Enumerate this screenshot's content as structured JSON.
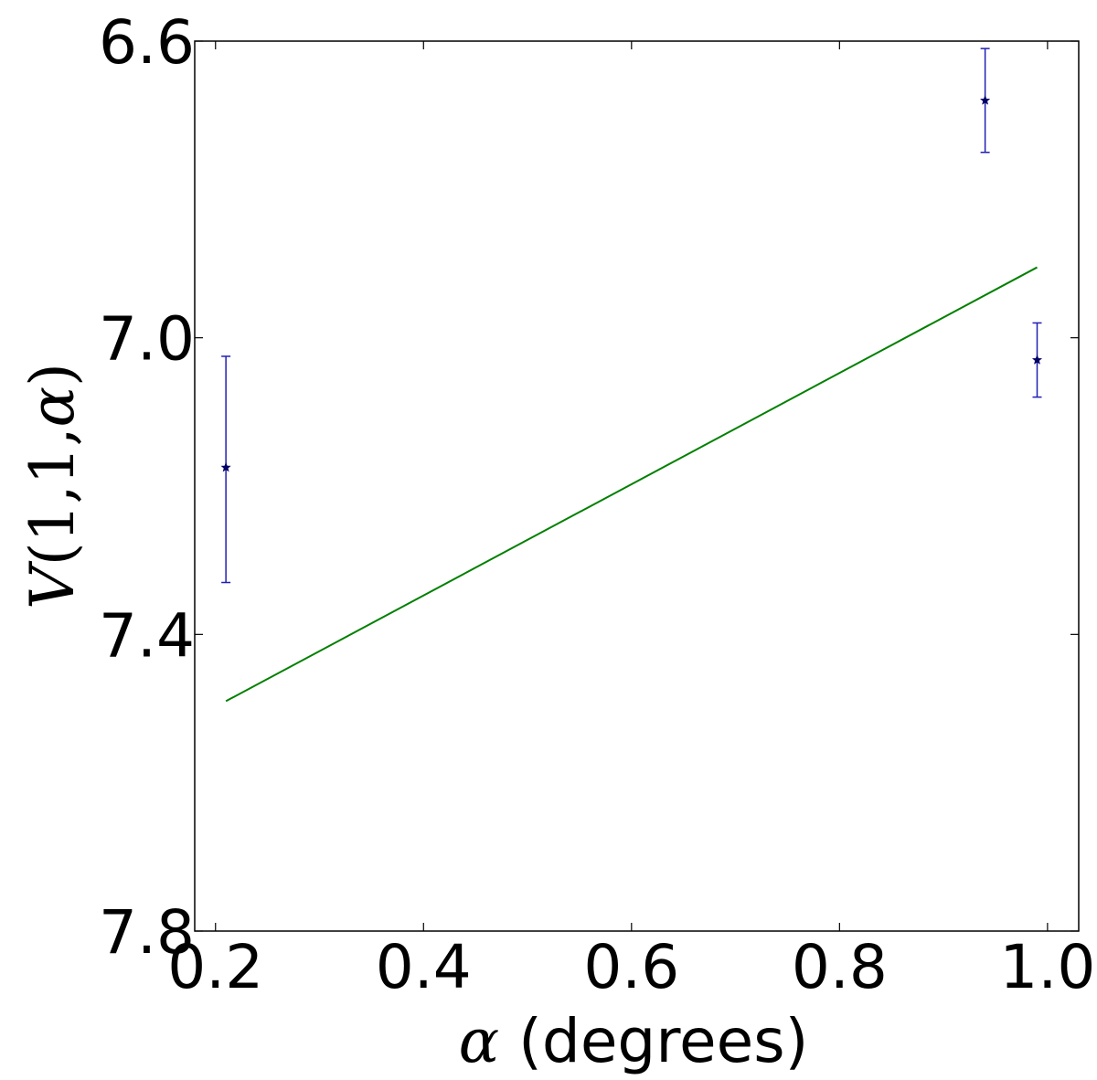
{
  "chart_data": {
    "type": "scatter",
    "xlabel": "α (degrees)",
    "ylabel": "V(1,1,α)",
    "xlim": [
      0.18,
      1.03
    ],
    "ylim": [
      6.6,
      7.8
    ],
    "y_inverted": true,
    "x_ticks": [
      0.2,
      0.4,
      0.6,
      0.8,
      1.0
    ],
    "x_tick_labels": [
      "0.2",
      "0.4",
      "0.6",
      "0.8",
      "1.0"
    ],
    "y_ticks": [
      6.6,
      7.0,
      7.4,
      7.8
    ],
    "y_tick_labels": [
      "6.6",
      "7.0",
      "7.4",
      "7.8"
    ],
    "grid": false,
    "series": [
      {
        "type": "errorbar",
        "marker": "star",
        "color": "#1f1fb4",
        "marker_color": "#000066",
        "points": [
          {
            "x": 0.21,
            "y": 7.175,
            "yerr_low": 7.025,
            "yerr_high": 7.33
          },
          {
            "x": 0.94,
            "y": 6.68,
            "yerr_low": 6.61,
            "yerr_high": 6.75
          },
          {
            "x": 0.99,
            "y": 7.03,
            "yerr_low": 6.98,
            "yerr_high": 7.08
          }
        ]
      },
      {
        "type": "line",
        "color": "#008000",
        "points": [
          {
            "x": 0.21,
            "y": 7.49
          },
          {
            "x": 0.99,
            "y": 6.905
          }
        ]
      }
    ]
  }
}
